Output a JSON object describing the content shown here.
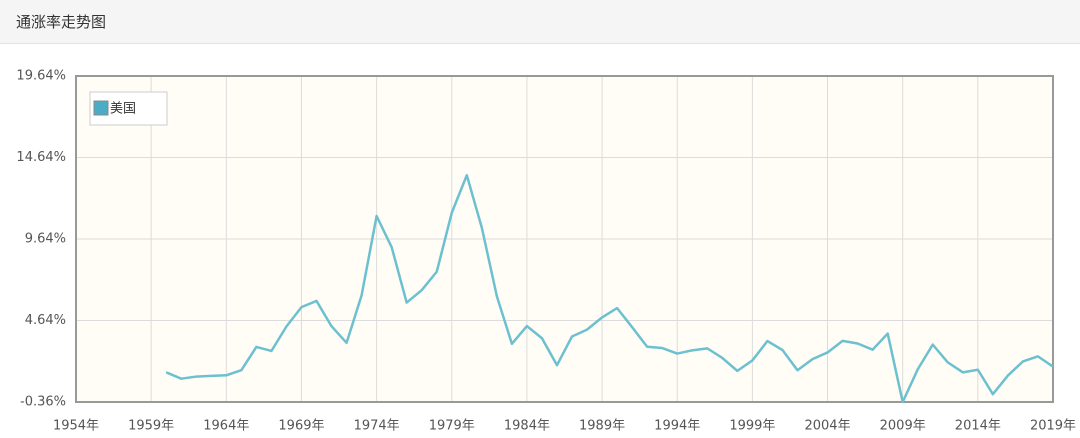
{
  "header": {
    "title": "通涨率走势图"
  },
  "chart_data": {
    "type": "line",
    "x": [
      1960,
      1961,
      1962,
      1963,
      1964,
      1965,
      1966,
      1967,
      1968,
      1969,
      1970,
      1971,
      1972,
      1973,
      1974,
      1975,
      1976,
      1977,
      1978,
      1979,
      1980,
      1981,
      1982,
      1983,
      1984,
      1985,
      1986,
      1987,
      1988,
      1989,
      1990,
      1991,
      1992,
      1993,
      1994,
      1995,
      1996,
      1997,
      1998,
      1999,
      2000,
      2001,
      2002,
      2003,
      2004,
      2005,
      2006,
      2007,
      2008,
      2009,
      2010,
      2011,
      2012,
      2013,
      2014,
      2015,
      2016,
      2017,
      2018,
      2019
    ],
    "series": [
      {
        "name": "美国",
        "color": "#6cc0cf",
        "legend_color": "#4bacc6",
        "values": [
          1.46,
          1.07,
          1.2,
          1.24,
          1.28,
          1.59,
          3.02,
          2.77,
          4.27,
          5.46,
          5.84,
          4.29,
          3.27,
          6.18,
          11.05,
          9.14,
          5.74,
          6.5,
          7.63,
          11.25,
          13.55,
          10.33,
          6.13,
          3.21,
          4.3,
          3.55,
          1.9,
          3.66,
          4.08,
          4.83,
          5.4,
          4.23,
          3.03,
          2.95,
          2.61,
          2.81,
          2.93,
          2.34,
          1.55,
          2.19,
          3.38,
          2.83,
          1.59,
          2.27,
          2.68,
          3.39,
          3.23,
          2.85,
          3.84,
          -0.36,
          1.64,
          3.16,
          2.07,
          1.46,
          1.62,
          0.12,
          1.26,
          2.13,
          2.44,
          1.81
        ]
      }
    ],
    "xlim": [
      1954,
      2019
    ],
    "xticks": [
      {
        "value": 1954,
        "label": "1954年"
      },
      {
        "value": 1959,
        "label": "1959年"
      },
      {
        "value": 1964,
        "label": "1964年"
      },
      {
        "value": 1969,
        "label": "1969年"
      },
      {
        "value": 1974,
        "label": "1974年"
      },
      {
        "value": 1979,
        "label": "1979年"
      },
      {
        "value": 1984,
        "label": "1984年"
      },
      {
        "value": 1989,
        "label": "1989年"
      },
      {
        "value": 1994,
        "label": "1994年"
      },
      {
        "value": 1999,
        "label": "1999年"
      },
      {
        "value": 2004,
        "label": "2004年"
      },
      {
        "value": 2009,
        "label": "2009年"
      },
      {
        "value": 2014,
        "label": "2014年"
      },
      {
        "value": 2019,
        "label": "2019年"
      }
    ],
    "ylim": [
      -0.36,
      19.64
    ],
    "yticks": [
      {
        "value": -0.36,
        "label": "-0.36%"
      },
      {
        "value": 4.64,
        "label": "4.64%"
      },
      {
        "value": 9.64,
        "label": "9.64%"
      },
      {
        "value": 14.64,
        "label": "14.64%"
      },
      {
        "value": 19.64,
        "label": "19.64%"
      }
    ],
    "grid": true,
    "legend": "upper left"
  }
}
